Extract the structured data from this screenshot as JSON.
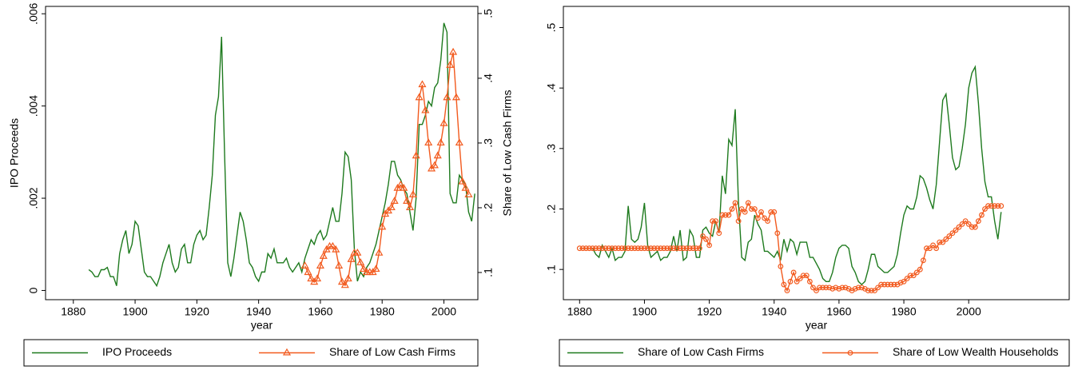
{
  "chart_data": [
    {
      "type": "line",
      "x_label": "year",
      "y_label": "IPO Proceeds",
      "y2_label": "Share of Low Cash Firms",
      "x": [
        1885,
        1886,
        1887,
        1888,
        1889,
        1890,
        1891,
        1892,
        1893,
        1894,
        1895,
        1896,
        1897,
        1898,
        1899,
        1900,
        1901,
        1902,
        1903,
        1904,
        1905,
        1906,
        1907,
        1908,
        1909,
        1910,
        1911,
        1912,
        1913,
        1914,
        1915,
        1916,
        1917,
        1918,
        1919,
        1920,
        1921,
        1922,
        1923,
        1924,
        1925,
        1926,
        1927,
        1928,
        1929,
        1930,
        1931,
        1932,
        1933,
        1934,
        1935,
        1936,
        1937,
        1938,
        1939,
        1940,
        1941,
        1942,
        1943,
        1944,
        1945,
        1946,
        1947,
        1948,
        1949,
        1950,
        1951,
        1952,
        1953,
        1954,
        1955,
        1956,
        1957,
        1958,
        1959,
        1960,
        1961,
        1962,
        1963,
        1964,
        1965,
        1966,
        1967,
        1968,
        1969,
        1970,
        1971,
        1972,
        1973,
        1974,
        1975,
        1976,
        1977,
        1978,
        1979,
        1980,
        1981,
        1982,
        1983,
        1984,
        1985,
        1986,
        1987,
        1988,
        1989,
        1990,
        1991,
        1992,
        1993,
        1994,
        1995,
        1996,
        1997,
        1998,
        1999,
        2000,
        2001,
        2002,
        2003,
        2004,
        2005,
        2006,
        2007,
        2008,
        2009,
        2010
      ],
      "series": [
        {
          "name": "IPO Proceeds",
          "color": "#1e7a1e",
          "marker": "none",
          "values": [
            0.00045,
            0.0004,
            0.0003,
            0.0003,
            0.00045,
            0.00045,
            0.0005,
            0.0003,
            0.0003,
            0.0001,
            0.0008,
            0.0011,
            0.0013,
            0.0008,
            0.001,
            0.0015,
            0.0014,
            0.0009,
            0.0004,
            0.0003,
            0.0003,
            0.0002,
            0.0001,
            0.0003,
            0.0006,
            0.0008,
            0.001,
            0.0006,
            0.0004,
            0.0005,
            0.0009,
            0.001,
            0.0006,
            0.0006,
            0.001,
            0.0012,
            0.0013,
            0.0011,
            0.0012,
            0.0018,
            0.0025,
            0.0038,
            0.0042,
            0.0055,
            0.0029,
            0.0006,
            0.0003,
            0.0007,
            0.0012,
            0.0017,
            0.0015,
            0.0011,
            0.0006,
            0.0005,
            0.0003,
            0.0002,
            0.0004,
            0.0004,
            0.0008,
            0.0007,
            0.0009,
            0.0006,
            0.0006,
            0.0006,
            0.0007,
            0.0005,
            0.0004,
            0.0005,
            0.0006,
            0.0004,
            0.0007,
            0.0009,
            0.0011,
            0.001,
            0.0012,
            0.0013,
            0.0011,
            0.0012,
            0.0015,
            0.0018,
            0.0015,
            0.0015,
            0.0021,
            0.003,
            0.0029,
            0.0024,
            0.0009,
            0.0002,
            0.0004,
            0.0003,
            0.0005,
            0.0006,
            0.0008,
            0.001,
            0.0013,
            0.0016,
            0.0019,
            0.0023,
            0.0028,
            0.0028,
            0.0025,
            0.0024,
            0.0022,
            0.0021,
            0.0017,
            0.0013,
            0.002,
            0.0036,
            0.0036,
            0.0038,
            0.0041,
            0.004,
            0.0044,
            0.0045,
            0.005,
            0.0058,
            0.0056,
            0.0021,
            0.0019,
            0.0019,
            0.0025,
            0.0024,
            0.0023,
            0.0017,
            0.0015,
            0.0021
          ]
        },
        {
          "name": "Share of Low Cash Firms",
          "color": "#f25a1e",
          "marker": "triangle",
          "axis": "y2",
          "values": [
            null,
            null,
            null,
            null,
            null,
            null,
            null,
            null,
            null,
            null,
            null,
            null,
            null,
            null,
            null,
            null,
            null,
            null,
            null,
            null,
            null,
            null,
            null,
            null,
            null,
            null,
            null,
            null,
            null,
            null,
            null,
            null,
            null,
            null,
            null,
            null,
            null,
            null,
            null,
            null,
            null,
            null,
            null,
            null,
            null,
            null,
            null,
            null,
            null,
            null,
            null,
            null,
            null,
            null,
            null,
            null,
            null,
            null,
            null,
            null,
            null,
            null,
            null,
            null,
            null,
            null,
            null,
            null,
            null,
            null,
            0.11,
            0.1,
            0.09,
            0.085,
            0.09,
            0.11,
            0.125,
            0.135,
            0.14,
            0.14,
            0.135,
            0.11,
            0.085,
            0.08,
            0.09,
            0.12,
            0.13,
            0.13,
            0.115,
            0.105,
            0.1,
            0.1,
            0.1,
            0.105,
            0.13,
            0.17,
            0.19,
            0.195,
            0.2,
            0.21,
            0.23,
            0.235,
            0.23,
            0.21,
            0.2,
            0.22,
            0.28,
            0.37,
            0.39,
            0.35,
            0.3,
            0.26,
            0.265,
            0.28,
            0.3,
            0.33,
            0.37,
            0.42,
            0.44,
            0.37,
            0.3,
            0.24,
            0.23,
            0.22,
            null,
            null
          ]
        }
      ],
      "xlim": [
        1871,
        2011
      ],
      "xticks": [
        1880,
        1900,
        1920,
        1940,
        1960,
        1980,
        2000
      ],
      "ylim": [
        -0.0002,
        0.00616
      ],
      "yticks": [
        0,
        {
          "value": 0.002,
          "label": ".002"
        },
        {
          "value": 0.004,
          "label": ".004"
        },
        {
          "value": 0.006,
          "label": ".006"
        }
      ],
      "y2lim": [
        0.058,
        0.511
      ],
      "y2ticks": [
        {
          "value": 0.1,
          "label": ".1"
        },
        {
          "value": 0.2,
          "label": ".2"
        },
        {
          "value": 0.3,
          "label": ".3"
        },
        {
          "value": 0.4,
          "label": ".4"
        },
        {
          "value": 0.5,
          "label": ".5"
        }
      ],
      "legend": "bottom"
    },
    {
      "type": "line",
      "x_label": "year",
      "x": [
        1880,
        1881,
        1882,
        1883,
        1884,
        1885,
        1886,
        1887,
        1888,
        1889,
        1890,
        1891,
        1892,
        1893,
        1894,
        1895,
        1896,
        1897,
        1898,
        1899,
        1900,
        1901,
        1902,
        1903,
        1904,
        1905,
        1906,
        1907,
        1908,
        1909,
        1910,
        1911,
        1912,
        1913,
        1914,
        1915,
        1916,
        1917,
        1918,
        1919,
        1920,
        1921,
        1922,
        1923,
        1924,
        1925,
        1926,
        1927,
        1928,
        1929,
        1930,
        1931,
        1932,
        1933,
        1934,
        1935,
        1936,
        1937,
        1938,
        1939,
        1940,
        1941,
        1942,
        1943,
        1944,
        1945,
        1946,
        1947,
        1948,
        1949,
        1950,
        1951,
        1952,
        1953,
        1954,
        1955,
        1956,
        1957,
        1958,
        1959,
        1960,
        1961,
        1962,
        1963,
        1964,
        1965,
        1966,
        1967,
        1968,
        1969,
        1970,
        1971,
        1972,
        1973,
        1974,
        1975,
        1976,
        1977,
        1978,
        1979,
        1980,
        1981,
        1982,
        1983,
        1984,
        1985,
        1986,
        1987,
        1988,
        1989,
        1990,
        1991,
        1992,
        1993,
        1994,
        1995,
        1996,
        1997,
        1998,
        1999,
        2000,
        2001,
        2002,
        2003,
        2004,
        2005,
        2006,
        2007,
        2008,
        2009,
        2010
      ],
      "series": [
        {
          "name": "Share of Low Cash Firms",
          "color": "#1e7a1e",
          "marker": "none",
          "values": [
            0.135,
            0.135,
            0.135,
            0.135,
            0.135,
            0.125,
            0.12,
            0.14,
            0.13,
            0.12,
            0.135,
            0.115,
            0.12,
            0.12,
            0.13,
            0.205,
            0.15,
            0.145,
            0.15,
            0.17,
            0.21,
            0.14,
            0.12,
            0.125,
            0.13,
            0.115,
            0.12,
            0.12,
            0.13,
            0.155,
            0.13,
            0.165,
            0.115,
            0.12,
            0.165,
            0.155,
            0.12,
            0.12,
            0.165,
            0.17,
            0.16,
            0.155,
            0.18,
            0.16,
            0.255,
            0.225,
            0.315,
            0.305,
            0.365,
            0.21,
            0.12,
            0.115,
            0.145,
            0.15,
            0.19,
            0.175,
            0.165,
            0.13,
            0.13,
            0.125,
            0.12,
            0.13,
            0.115,
            0.15,
            0.13,
            0.15,
            0.145,
            0.125,
            0.145,
            0.145,
            0.145,
            0.12,
            0.12,
            0.11,
            0.1,
            0.085,
            0.08,
            0.08,
            0.095,
            0.12,
            0.135,
            0.14,
            0.14,
            0.135,
            0.105,
            0.095,
            0.08,
            0.075,
            0.08,
            0.1,
            0.125,
            0.125,
            0.105,
            0.1,
            0.095,
            0.095,
            0.1,
            0.105,
            0.125,
            0.16,
            0.19,
            0.205,
            0.2,
            0.2,
            0.22,
            0.255,
            0.25,
            0.235,
            0.215,
            0.2,
            0.24,
            0.31,
            0.38,
            0.39,
            0.34,
            0.285,
            0.265,
            0.27,
            0.3,
            0.34,
            0.4,
            0.425,
            0.435,
            0.375,
            0.3,
            0.245,
            0.22,
            0.22,
            0.18,
            0.15,
            0.195
          ]
        },
        {
          "name": "Share of Low Wealth Households",
          "color": "#f25a1e",
          "marker": "circle",
          "values": [
            0.135,
            0.135,
            0.135,
            0.135,
            0.135,
            0.135,
            0.135,
            0.135,
            0.135,
            0.135,
            0.135,
            0.135,
            0.135,
            0.135,
            0.135,
            0.135,
            0.135,
            0.135,
            0.135,
            0.135,
            0.135,
            0.135,
            0.135,
            0.135,
            0.135,
            0.135,
            0.135,
            0.135,
            0.135,
            0.135,
            0.135,
            0.135,
            0.135,
            0.135,
            0.135,
            0.135,
            0.135,
            0.135,
            0.155,
            0.15,
            0.14,
            0.18,
            0.18,
            0.16,
            0.19,
            0.19,
            0.19,
            0.2,
            0.21,
            0.18,
            0.2,
            0.195,
            0.21,
            0.2,
            0.2,
            0.185,
            0.195,
            0.185,
            0.18,
            0.195,
            0.195,
            0.16,
            0.105,
            0.075,
            0.065,
            0.08,
            0.095,
            0.08,
            0.085,
            0.09,
            0.09,
            0.08,
            0.07,
            0.065,
            0.07,
            0.07,
            0.07,
            0.07,
            0.068,
            0.07,
            0.068,
            0.07,
            0.07,
            0.068,
            0.065,
            0.068,
            0.07,
            0.07,
            0.068,
            0.065,
            0.065,
            0.065,
            0.07,
            0.075,
            0.075,
            0.075,
            0.075,
            0.075,
            0.075,
            0.078,
            0.08,
            0.085,
            0.09,
            0.09,
            0.095,
            0.1,
            0.115,
            0.135,
            0.135,
            0.14,
            0.135,
            0.145,
            0.145,
            0.15,
            0.155,
            0.16,
            0.165,
            0.17,
            0.175,
            0.18,
            0.175,
            0.17,
            0.17,
            0.18,
            0.19,
            0.2,
            0.205,
            0.205,
            0.205,
            0.205,
            0.205
          ]
        }
      ],
      "xlim": [
        1875,
        2031
      ],
      "xticks": [
        1880,
        1900,
        1920,
        1940,
        1960,
        1980,
        2000
      ],
      "ylim": [
        0.05,
        0.535
      ],
      "yticks": [
        {
          "value": 0.1,
          "label": ".1"
        },
        {
          "value": 0.2,
          "label": ".2"
        },
        {
          "value": 0.3,
          "label": ".3"
        },
        {
          "value": 0.4,
          "label": ".4"
        },
        {
          "value": 0.5,
          "label": ".5"
        }
      ],
      "legend": "bottom"
    }
  ]
}
